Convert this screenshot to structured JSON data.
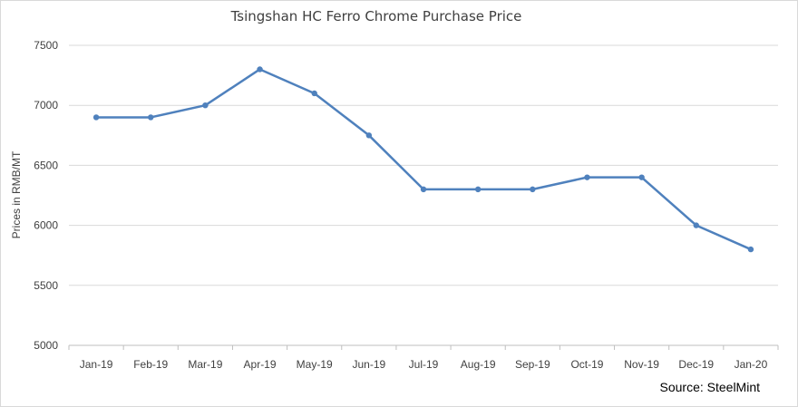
{
  "chart_data": {
    "type": "line",
    "title": "Tsingshan HC Ferro Chrome Purchase Price",
    "xlabel": "",
    "ylabel": "Prices in RMB/MT",
    "categories": [
      "Jan-19",
      "Feb-19",
      "Mar-19",
      "Apr-19",
      "May-19",
      "Jun-19",
      "Jul-19",
      "Aug-19",
      "Sep-19",
      "Oct-19",
      "Nov-19",
      "Dec-19",
      "Jan-20"
    ],
    "series": [
      {
        "values": [
          6900,
          6900,
          7000,
          7300,
          7100,
          6750,
          6300,
          6300,
          6300,
          6400,
          6400,
          6000,
          5800
        ]
      }
    ],
    "ylim": [
      5000,
      7500
    ],
    "yticks": [
      5000,
      5500,
      6000,
      6500,
      7000,
      7500
    ],
    "grid": true,
    "legend": "none",
    "line_color": "#4f81bd",
    "source": "Source: SteelMint"
  }
}
